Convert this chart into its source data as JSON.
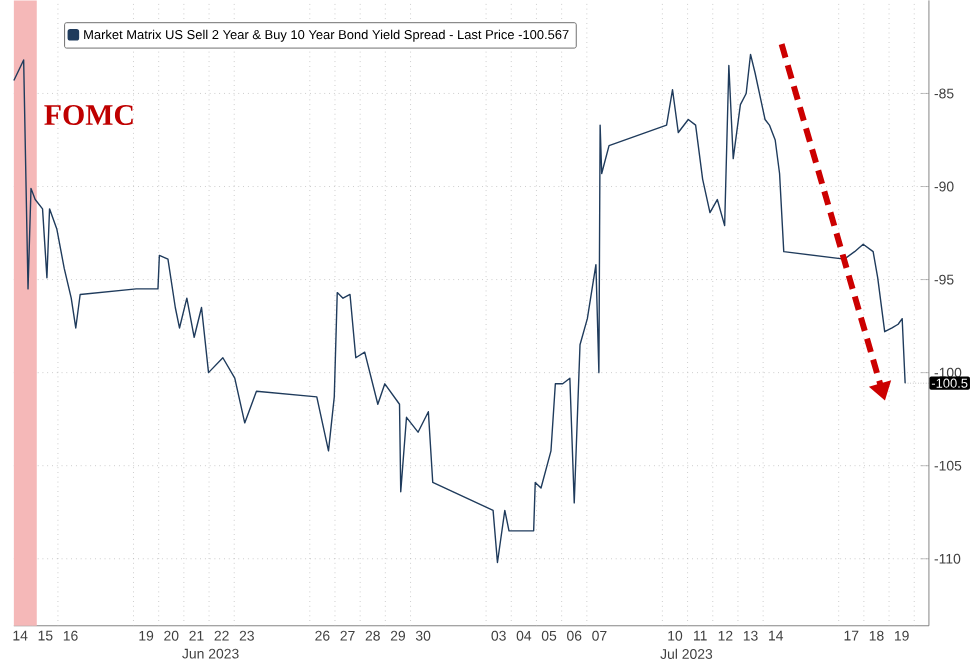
{
  "chart_data": {
    "type": "line",
    "x": [
      "2023-06-14T06:00",
      "2023-06-14T15:20",
      "2023-06-14T19:30",
      "2023-06-14T22:20",
      "2023-06-15T02:20",
      "2023-06-15T09:20",
      "2023-06-15T13:30",
      "2023-06-15T16:00",
      "2023-06-15T23:00",
      "2023-06-16T06:00",
      "2023-06-16T12:40",
      "2023-06-16T17:00",
      "2023-06-16T21:10",
      "2023-06-19T02:40",
      "2023-06-19T23:20",
      "2023-06-20T00:40",
      "2023-06-20T08:50",
      "2023-06-20T15:50",
      "2023-06-20T19:50",
      "2023-06-21T02:50",
      "2023-06-21T09:50",
      "2023-06-21T16:50",
      "2023-06-21T23:30",
      "2023-06-22T13:10",
      "2023-06-23T00:30",
      "2023-06-23T10:00",
      "2023-06-23T21:10",
      "2023-06-26T06:40",
      "2023-06-26T17:50",
      "2023-06-26T23:20",
      "2023-06-27T02:10",
      "2023-06-27T07:40",
      "2023-06-27T14:20",
      "2023-06-27T19:50",
      "2023-06-28T04:20",
      "2023-06-28T16:50",
      "2023-06-28T23:30",
      "2023-06-29T13:30",
      "2023-06-29T14:40",
      "2023-06-29T20:10",
      "2023-06-30T07:10",
      "2023-06-30T17:00",
      "2023-06-30T21:10",
      "2023-07-03T06:40",
      "2023-07-03T10:50",
      "2023-07-03T17:50",
      "2023-07-03T21:50",
      "2023-07-04T21:20",
      "2023-07-04T22:50",
      "2023-07-05T04:20",
      "2023-07-05T13:50",
      "2023-07-05T18:00",
      "2023-07-06T01:00",
      "2023-07-06T07:50",
      "2023-07-06T12:00",
      "2023-07-06T17:30",
      "2023-07-07T00:30",
      "2023-07-07T08:40",
      "2023-07-07T11:30",
      "2023-07-07T12:40",
      "2023-07-07T14:10",
      "2023-07-07T21:10",
      "2023-07-10T04:00",
      "2023-07-10T09:40",
      "2023-07-10T15:10",
      "2023-07-11T00:40",
      "2023-07-11T07:40",
      "2023-07-11T14:20",
      "2023-07-11T21:20",
      "2023-07-12T04:20",
      "2023-07-12T11:20",
      "2023-07-12T15:20",
      "2023-07-12T19:30",
      "2023-07-13T02:20",
      "2023-07-13T07:50",
      "2023-07-13T12:00",
      "2023-07-13T16:20",
      "2023-07-13T21:40",
      "2023-07-14T01:50",
      "2023-07-14T06:00",
      "2023-07-14T11:30",
      "2023-07-14T15:40",
      "2023-07-14T19:40",
      "2023-07-17T05:20",
      "2023-07-17T15:10",
      "2023-07-17T23:20",
      "2023-07-18T08:50",
      "2023-07-18T13:10",
      "2023-07-18T19:50",
      "2023-07-19T02:50",
      "2023-07-19T08:40",
      "2023-07-19T12:30",
      "2023-07-19T15:20"
    ],
    "series": [
      {
        "name": "Market Matrix US Sell 2 Year & Buy 10 Year Bond Yield Spread - Last Price -100.567",
        "color": "#1f3b5c",
        "values": [
          -84.3,
          -83.2,
          -95.5,
          -90.1,
          -90.7,
          -91.2,
          -94.9,
          -91.2,
          -92.3,
          -94.4,
          -96.0,
          -97.6,
          -95.8,
          -95.5,
          -95.5,
          -93.7,
          -93.9,
          -96.5,
          -97.6,
          -96.0,
          -98.1,
          -96.5,
          -100.0,
          -99.2,
          -100.3,
          -102.7,
          -101.0,
          -101.3,
          -104.2,
          -101.3,
          -95.7,
          -96.0,
          -95.8,
          -99.2,
          -98.9,
          -101.7,
          -100.6,
          -101.7,
          -106.4,
          -102.4,
          -103.2,
          -102.1,
          -105.9,
          -107.4,
          -110.2,
          -107.4,
          -108.5,
          -108.5,
          -105.9,
          -106.2,
          -104.2,
          -100.6,
          -100.6,
          -100.3,
          -107.0,
          -98.5,
          -97.1,
          -94.2,
          -100.0,
          -86.7,
          -89.3,
          -87.8,
          -86.7,
          -84.8,
          -87.1,
          -86.4,
          -86.7,
          -89.6,
          -91.4,
          -90.7,
          -92.1,
          -83.5,
          -88.5,
          -85.6,
          -85.0,
          -82.9,
          -83.9,
          -85.3,
          -86.4,
          -86.7,
          -87.5,
          -89.3,
          -93.5,
          -93.9,
          -93.5,
          -93.1,
          -93.5,
          -94.9,
          -97.8,
          -97.6,
          -97.4,
          -97.1,
          -100.567
        ]
      }
    ],
    "xlim": [
      "2023-06-14T06:00",
      "2023-07-20T14:00"
    ],
    "ylim": [
      -113.6,
      -80
    ],
    "yticks": [
      -85,
      -90,
      -95,
      -100,
      -105,
      -110
    ],
    "xticks": [
      {
        "value": "2023-06-14T12:00",
        "label": "14"
      },
      {
        "value": "2023-06-15T00:00",
        "label": null
      },
      {
        "value": "2023-06-15T12:00",
        "label": "15"
      },
      {
        "value": "2023-06-16T00:00",
        "label": null
      },
      {
        "value": "2023-06-16T12:00",
        "label": "16"
      },
      {
        "value": "2023-06-19T00:00",
        "label": null
      },
      {
        "value": "2023-06-19T12:00",
        "label": "19"
      },
      {
        "value": "2023-06-20T00:00",
        "label": null
      },
      {
        "value": "2023-06-20T12:00",
        "label": "20"
      },
      {
        "value": "2023-06-21T00:00",
        "label": null
      },
      {
        "value": "2023-06-21T12:00",
        "label": "21"
      },
      {
        "value": "2023-06-22T00:00",
        "label": null
      },
      {
        "value": "2023-06-22T12:00",
        "label": "22"
      },
      {
        "value": "2023-06-23T00:00",
        "label": null
      },
      {
        "value": "2023-06-23T12:00",
        "label": "23"
      },
      {
        "value": "2023-06-26T00:00",
        "label": null
      },
      {
        "value": "2023-06-26T12:00",
        "label": "26"
      },
      {
        "value": "2023-06-27T00:00",
        "label": null
      },
      {
        "value": "2023-06-27T12:00",
        "label": "27"
      },
      {
        "value": "2023-06-28T00:00",
        "label": null
      },
      {
        "value": "2023-06-28T12:00",
        "label": "28"
      },
      {
        "value": "2023-06-29T00:00",
        "label": null
      },
      {
        "value": "2023-06-29T12:00",
        "label": "29"
      },
      {
        "value": "2023-06-30T00:00",
        "label": null
      },
      {
        "value": "2023-06-30T12:00",
        "label": "30"
      },
      {
        "value": "2023-07-03T00:00",
        "label": null
      },
      {
        "value": "2023-07-03T12:00",
        "label": "03"
      },
      {
        "value": "2023-07-04T00:00",
        "label": null
      },
      {
        "value": "2023-07-04T12:00",
        "label": "04"
      },
      {
        "value": "2023-07-05T00:00",
        "label": null
      },
      {
        "value": "2023-07-05T12:00",
        "label": "05"
      },
      {
        "value": "2023-07-06T00:00",
        "label": null
      },
      {
        "value": "2023-07-06T12:00",
        "label": "06"
      },
      {
        "value": "2023-07-07T00:00",
        "label": null
      },
      {
        "value": "2023-07-07T12:00",
        "label": "07"
      },
      {
        "value": "2023-07-10T00:00",
        "label": null
      },
      {
        "value": "2023-07-10T12:00",
        "label": "10"
      },
      {
        "value": "2023-07-11T00:00",
        "label": null
      },
      {
        "value": "2023-07-11T12:00",
        "label": "11"
      },
      {
        "value": "2023-07-12T00:00",
        "label": null
      },
      {
        "value": "2023-07-12T12:00",
        "label": "12"
      },
      {
        "value": "2023-07-13T00:00",
        "label": null
      },
      {
        "value": "2023-07-13T12:00",
        "label": "13"
      },
      {
        "value": "2023-07-14T00:00",
        "label": null
      },
      {
        "value": "2023-07-14T12:00",
        "label": "14"
      },
      {
        "value": "2023-07-17T00:00",
        "label": null
      },
      {
        "value": "2023-07-17T12:00",
        "label": "17"
      },
      {
        "value": "2023-07-18T00:00",
        "label": null
      },
      {
        "value": "2023-07-18T12:00",
        "label": "18"
      },
      {
        "value": "2023-07-19T00:00",
        "label": null
      },
      {
        "value": "2023-07-19T12:00",
        "label": "19"
      },
      {
        "value": "2023-07-20T00:00",
        "label": null
      }
    ],
    "bands": [
      {
        "axis": "x",
        "from": "2023-06-14T06:00",
        "to": "2023-06-15T03:50",
        "label": "FOMC",
        "color": "#f5b8b8"
      }
    ],
    "annotations": [
      "Jun 2023",
      "Jul 2023",
      {
        "text": "-100.5",
        "x": "2023-07-19T15:20",
        "y": -100.567
      }
    ],
    "grid": true,
    "legend": "top left",
    "marker": "none",
    "line_style": "solid"
  }
}
